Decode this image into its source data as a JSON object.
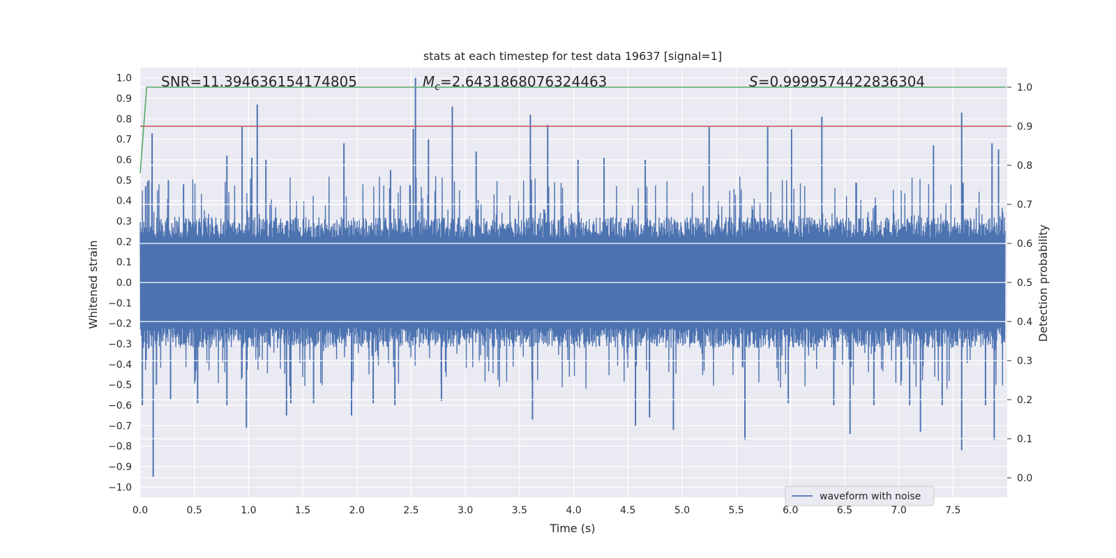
{
  "chart_data": {
    "type": "line",
    "title": "stats at each timestep for test data 19637 [signal=1]",
    "xlabel": "Time (s)",
    "ylabel_left": "Whitened strain",
    "ylabel_right": "Detection probability",
    "xlim": [
      0.0,
      8.0
    ],
    "ylim_left": [
      -1.05,
      1.05
    ],
    "ylim_right": [
      -0.05,
      1.05
    ],
    "x_ticks": [
      0.0,
      0.5,
      1.0,
      1.5,
      2.0,
      2.5,
      3.0,
      3.5,
      4.0,
      4.5,
      5.0,
      5.5,
      6.0,
      6.5,
      7.0,
      7.5
    ],
    "x_tick_labels": [
      "0.0",
      "0.5",
      "1.0",
      "1.5",
      "2.0",
      "2.5",
      "3.0",
      "3.5",
      "4.0",
      "4.5",
      "5.0",
      "5.5",
      "6.0",
      "6.5",
      "7.0",
      "7.5"
    ],
    "y_left_ticks": [
      1.0,
      0.9,
      0.8,
      0.7,
      0.6,
      0.5,
      0.4,
      0.3,
      0.2,
      0.1,
      0.0,
      -0.1,
      -0.2,
      -0.3,
      -0.4,
      -0.5,
      -0.6,
      -0.7,
      -0.8,
      -0.9,
      -1.0
    ],
    "y_left_tick_labels": [
      "1.0",
      "0.9",
      "0.8",
      "0.7",
      "0.6",
      "0.5",
      "0.4",
      "0.3",
      "0.2",
      "0.1",
      "0.0",
      "−0.1",
      "−0.2",
      "−0.3",
      "−0.4",
      "−0.5",
      "−0.6",
      "−0.7",
      "−0.8",
      "−0.9",
      "−1.0"
    ],
    "y_right_ticks": [
      1.0,
      0.9,
      0.8,
      0.7,
      0.6,
      0.5,
      0.4,
      0.3,
      0.2,
      0.1,
      0.0
    ],
    "y_right_tick_labels": [
      "1.0",
      "0.9",
      "0.8",
      "0.7",
      "0.6",
      "0.5",
      "0.4",
      "0.3",
      "0.2",
      "0.1",
      "0.0"
    ],
    "annotations": {
      "snr": "SNR=11.394636154174805",
      "mc_symbol": "M",
      "mc_sub": "c",
      "mc_value": "=2.6431868076324463",
      "s_symbol": "S",
      "s_value": "=0.9999574422836304"
    },
    "threshold": {
      "axis": "right",
      "value": 0.9,
      "color": "#c44e52"
    },
    "series": [
      {
        "name": "waveform with noise",
        "axis": "left",
        "color": "#4c72b0",
        "description": "whitened strain, dense noise mostly within ±0.25 with spikes up to ~1.0 and down to ~-0.95",
        "spikes": [
          [
            0.02,
            -0.6
          ],
          [
            0.05,
            0.47
          ],
          [
            0.08,
            0.5
          ],
          [
            0.11,
            0.73
          ],
          [
            0.12,
            -0.95
          ],
          [
            0.15,
            -0.5
          ],
          [
            0.26,
            0.5
          ],
          [
            0.28,
            -0.57
          ],
          [
            0.4,
            0.48
          ],
          [
            0.53,
            -0.59
          ],
          [
            0.8,
            0.62
          ],
          [
            0.8,
            -0.6
          ],
          [
            0.94,
            0.76
          ],
          [
            0.98,
            -0.71
          ],
          [
            1.03,
            0.61
          ],
          [
            1.08,
            0.87
          ],
          [
            1.16,
            0.6
          ],
          [
            1.35,
            -0.65
          ],
          [
            1.39,
            -0.59
          ],
          [
            1.6,
            -0.59
          ],
          [
            1.88,
            0.68
          ],
          [
            1.95,
            -0.65
          ],
          [
            2.15,
            -0.59
          ],
          [
            2.31,
            0.55
          ],
          [
            2.35,
            -0.6
          ],
          [
            2.52,
            0.75
          ],
          [
            2.54,
            1.0
          ],
          [
            2.66,
            0.7
          ],
          [
            2.78,
            -0.58
          ],
          [
            2.88,
            0.86
          ],
          [
            3.1,
            0.64
          ],
          [
            3.6,
            0.82
          ],
          [
            3.62,
            -0.67
          ],
          [
            3.76,
            0.77
          ],
          [
            4.04,
            0.6
          ],
          [
            4.28,
            0.61
          ],
          [
            4.57,
            -0.7
          ],
          [
            4.66,
            0.6
          ],
          [
            4.7,
            -0.66
          ],
          [
            4.92,
            -0.72
          ],
          [
            5.25,
            0.76
          ],
          [
            5.58,
            -0.77
          ],
          [
            5.79,
            0.76
          ],
          [
            5.98,
            -0.59
          ],
          [
            6.01,
            0.75
          ],
          [
            6.29,
            0.81
          ],
          [
            6.4,
            -0.6
          ],
          [
            6.55,
            -0.74
          ],
          [
            6.77,
            -0.6
          ],
          [
            7.1,
            -0.6
          ],
          [
            7.2,
            -0.73
          ],
          [
            7.32,
            0.67
          ],
          [
            7.4,
            -0.6
          ],
          [
            7.58,
            0.83
          ],
          [
            7.58,
            -0.82
          ],
          [
            7.8,
            -0.6
          ],
          [
            7.86,
            0.68
          ],
          [
            7.88,
            -0.77
          ],
          [
            7.92,
            0.65
          ]
        ]
      },
      {
        "name": "detection probability",
        "axis": "right",
        "color": "#55a868",
        "x": [
          0.0,
          0.06,
          0.1,
          7.99
        ],
        "values": [
          0.78,
          1.0,
          1.0,
          1.0
        ]
      }
    ],
    "legend": {
      "position": "bottom-right",
      "entries": [
        "waveform with noise"
      ]
    },
    "grid": true
  }
}
